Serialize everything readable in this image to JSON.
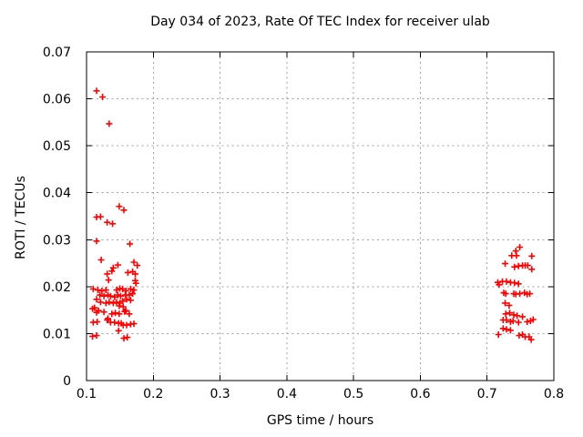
{
  "page": {
    "background": "#ffffff"
  },
  "chart_data": {
    "type": "scatter",
    "title": "Day 034 of 2023, Rate Of TEC Index for receiver ulab",
    "xlabel": "GPS time / hours",
    "ylabel": "ROTI / TECUs",
    "xlim": [
      0.1,
      0.8
    ],
    "ylim": [
      0,
      0.07
    ],
    "xticks": [
      0.1,
      0.2,
      0.3,
      0.4,
      0.5,
      0.6,
      0.7,
      0.8
    ],
    "xtick_labels": [
      "0.1",
      "0.2",
      "0.3",
      "0.4",
      "0.5",
      "0.6",
      "0.7",
      "0.8"
    ],
    "yticks": [
      0,
      0.01,
      0.02,
      0.03,
      0.04,
      0.05,
      0.06,
      0.07
    ],
    "ytick_labels": [
      "0",
      "0.01",
      "0.02",
      "0.03",
      "0.04",
      "0.05",
      "0.06",
      "0.07"
    ],
    "grid": true,
    "legend_position": "none",
    "axis_color": "#000000",
    "grid_color": "#a0a0a0",
    "marker": {
      "shape": "plus",
      "color": "#ff0000",
      "size": 7
    },
    "series": [
      {
        "name": "ROTI",
        "color": "#ff0000",
        "points": [
          [
            0.115,
            0.0617
          ],
          [
            0.124,
            0.0604
          ],
          [
            0.134,
            0.0547
          ],
          [
            0.149,
            0.0371
          ],
          [
            0.156,
            0.0363
          ],
          [
            0.115,
            0.0348
          ],
          [
            0.121,
            0.0349
          ],
          [
            0.131,
            0.0337
          ],
          [
            0.139,
            0.0334
          ],
          [
            0.115,
            0.0297
          ],
          [
            0.165,
            0.0291
          ],
          [
            0.122,
            0.0257
          ],
          [
            0.171,
            0.0252
          ],
          [
            0.147,
            0.0246
          ],
          [
            0.176,
            0.0245
          ],
          [
            0.14,
            0.024
          ],
          [
            0.138,
            0.0233
          ],
          [
            0.169,
            0.0232
          ],
          [
            0.162,
            0.023
          ],
          [
            0.173,
            0.0227
          ],
          [
            0.131,
            0.0227
          ],
          [
            0.133,
            0.0214
          ],
          [
            0.173,
            0.0213
          ],
          [
            0.174,
            0.0207
          ],
          [
            0.11,
            0.0195
          ],
          [
            0.117,
            0.0193
          ],
          [
            0.123,
            0.0191
          ],
          [
            0.129,
            0.0193
          ],
          [
            0.145,
            0.0193
          ],
          [
            0.15,
            0.0196
          ],
          [
            0.154,
            0.0195
          ],
          [
            0.159,
            0.0191
          ],
          [
            0.166,
            0.0195
          ],
          [
            0.171,
            0.0193
          ],
          [
            0.12,
            0.0182
          ],
          [
            0.126,
            0.018
          ],
          [
            0.132,
            0.0182
          ],
          [
            0.136,
            0.018
          ],
          [
            0.142,
            0.0178
          ],
          [
            0.147,
            0.0182
          ],
          [
            0.151,
            0.018
          ],
          [
            0.158,
            0.0182
          ],
          [
            0.164,
            0.0182
          ],
          [
            0.169,
            0.0185
          ],
          [
            0.115,
            0.0173
          ],
          [
            0.121,
            0.0167
          ],
          [
            0.129,
            0.0165
          ],
          [
            0.134,
            0.0167
          ],
          [
            0.14,
            0.0165
          ],
          [
            0.145,
            0.0167
          ],
          [
            0.15,
            0.0165
          ],
          [
            0.154,
            0.0169
          ],
          [
            0.16,
            0.0173
          ],
          [
            0.166,
            0.0171
          ],
          [
            0.112,
            0.0155
          ],
          [
            0.109,
            0.0153
          ],
          [
            0.118,
            0.0149
          ],
          [
            0.115,
            0.0145
          ],
          [
            0.126,
            0.0146
          ],
          [
            0.149,
            0.0159
          ],
          [
            0.155,
            0.0157
          ],
          [
            0.159,
            0.0149
          ],
          [
            0.157,
            0.0147
          ],
          [
            0.164,
            0.0142
          ],
          [
            0.138,
            0.0142
          ],
          [
            0.143,
            0.0144
          ],
          [
            0.149,
            0.0142
          ],
          [
            0.132,
            0.0132
          ],
          [
            0.11,
            0.0124
          ],
          [
            0.116,
            0.0125
          ],
          [
            0.131,
            0.0129
          ],
          [
            0.136,
            0.0124
          ],
          [
            0.142,
            0.0124
          ],
          [
            0.148,
            0.0122
          ],
          [
            0.152,
            0.0122
          ],
          [
            0.155,
            0.0118
          ],
          [
            0.16,
            0.0118
          ],
          [
            0.166,
            0.012
          ],
          [
            0.171,
            0.0121
          ],
          [
            0.148,
            0.0106
          ],
          [
            0.109,
            0.0094
          ],
          [
            0.115,
            0.0096
          ],
          [
            0.156,
            0.009
          ],
          [
            0.161,
            0.0092
          ],
          [
            0.749,
            0.0284
          ],
          [
            0.743,
            0.0276
          ],
          [
            0.737,
            0.0266
          ],
          [
            0.744,
            0.0266
          ],
          [
            0.767,
            0.0265
          ],
          [
            0.727,
            0.0249
          ],
          [
            0.741,
            0.0242
          ],
          [
            0.747,
            0.0244
          ],
          [
            0.753,
            0.0245
          ],
          [
            0.757,
            0.0245
          ],
          [
            0.761,
            0.0245
          ],
          [
            0.767,
            0.0237
          ],
          [
            0.716,
            0.0209
          ],
          [
            0.723,
            0.0211
          ],
          [
            0.729,
            0.0211
          ],
          [
            0.735,
            0.0209
          ],
          [
            0.741,
            0.0208
          ],
          [
            0.747,
            0.0206
          ],
          [
            0.718,
            0.0204
          ],
          [
            0.725,
            0.0187
          ],
          [
            0.728,
            0.0185
          ],
          [
            0.74,
            0.0185
          ],
          [
            0.743,
            0.0184
          ],
          [
            0.749,
            0.0185
          ],
          [
            0.756,
            0.0187
          ],
          [
            0.76,
            0.0184
          ],
          [
            0.764,
            0.0185
          ],
          [
            0.727,
            0.0165
          ],
          [
            0.733,
            0.016
          ],
          [
            0.728,
            0.0142
          ],
          [
            0.734,
            0.0144
          ],
          [
            0.74,
            0.014
          ],
          [
            0.745,
            0.0138
          ],
          [
            0.753,
            0.0136
          ],
          [
            0.724,
            0.0129
          ],
          [
            0.729,
            0.0129
          ],
          [
            0.735,
            0.0125
          ],
          [
            0.739,
            0.0127
          ],
          [
            0.747,
            0.0124
          ],
          [
            0.76,
            0.0125
          ],
          [
            0.765,
            0.0127
          ],
          [
            0.769,
            0.013
          ],
          [
            0.724,
            0.0111
          ],
          [
            0.729,
            0.0109
          ],
          [
            0.735,
            0.0107
          ],
          [
            0.717,
            0.0098
          ],
          [
            0.748,
            0.0096
          ],
          [
            0.753,
            0.0098
          ],
          [
            0.757,
            0.0093
          ],
          [
            0.763,
            0.0093
          ],
          [
            0.766,
            0.0087
          ]
        ]
      }
    ]
  }
}
